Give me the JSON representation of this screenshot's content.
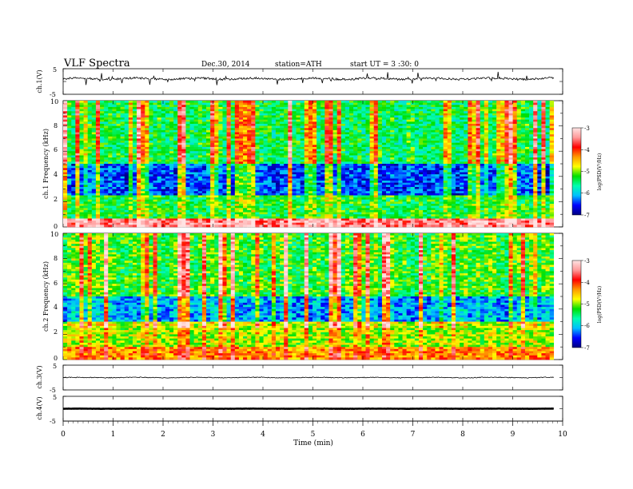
{
  "header": {
    "title": "VLF  Spectra",
    "date": "Dec.30, 2014",
    "station": "station=ATH",
    "start": "start  UT  =   3  :30: 0"
  },
  "colorbar": {
    "label": "log(PSD(V²/Hz)",
    "ticks": [
      "-3",
      "-4",
      "-5",
      "-6",
      "-7"
    ],
    "stops": [
      "#000080",
      "#0000ff",
      "#00bfff",
      "#00ffb0",
      "#00e000",
      "#ffff00",
      "#ff9900",
      "#ff0000",
      "#ff9a9a",
      "#ffe4e4"
    ]
  },
  "chart_data": [
    {
      "type": "line",
      "name": "ch1-waveform",
      "ylabel": "ch.1(V)",
      "ylim": [
        -5,
        5
      ],
      "yticks": [
        "5",
        "-5"
      ],
      "x_range_min": [
        0,
        9.82
      ],
      "baseline": 1.1,
      "noise_amplitude": 0.4,
      "color": "#000000"
    },
    {
      "type": "heatmap",
      "name": "ch1-spectrogram",
      "ylabel": "ch.1 Frequency (kHz)",
      "ylim": [
        0,
        10
      ],
      "yticks": [
        "0",
        "2",
        "4",
        "6",
        "8",
        "10"
      ],
      "x_range_min": [
        0,
        9.82
      ],
      "zlim": [
        -7,
        -3
      ],
      "z_label": "log(PSD(V²/Hz)",
      "bands": [
        {
          "from_khz": 0.0,
          "to_khz": 0.6,
          "mean_log_psd": -3.6
        },
        {
          "from_khz": 0.6,
          "to_khz": 2.5,
          "mean_log_psd": -5.4
        },
        {
          "from_khz": 2.5,
          "to_khz": 5.0,
          "mean_log_psd": -6.6
        },
        {
          "from_khz": 5.0,
          "to_khz": 10.0,
          "mean_log_psd": -5.6
        }
      ]
    },
    {
      "type": "heatmap",
      "name": "ch2-spectrogram",
      "ylabel": "ch.2 Frequency (kHz)",
      "ylim": [
        0,
        10
      ],
      "yticks": [
        "0",
        "2",
        "4",
        "6",
        "8",
        "10"
      ],
      "x_range_min": [
        0,
        9.82
      ],
      "zlim": [
        -7,
        -3
      ],
      "z_label": "log(PSD(V²/Hz)",
      "bands": [
        {
          "from_khz": 0.0,
          "to_khz": 1.0,
          "mean_log_psd": -4.4
        },
        {
          "from_khz": 1.0,
          "to_khz": 3.0,
          "mean_log_psd": -5.0
        },
        {
          "from_khz": 3.0,
          "to_khz": 5.0,
          "mean_log_psd": -6.3
        },
        {
          "from_khz": 5.0,
          "to_khz": 10.0,
          "mean_log_psd": -5.4
        }
      ]
    },
    {
      "type": "line",
      "name": "ch3-waveform",
      "ylabel": "ch.3(V)",
      "ylim": [
        -5,
        5
      ],
      "yticks": [
        "5",
        "-5"
      ],
      "x_range_min": [
        0,
        9.82
      ],
      "baseline": 0.0,
      "noise_amplitude": 0.15,
      "color": "#000000"
    },
    {
      "type": "line",
      "name": "ch4-waveform",
      "ylabel": "ch.4(V)",
      "ylim": [
        -5,
        5
      ],
      "yticks": [
        "5",
        "-5"
      ],
      "x_range_min": [
        0,
        9.82
      ],
      "baseline": 0.0,
      "noise_amplitude": 0.05,
      "color": "#000000"
    }
  ],
  "x_axis": {
    "label": "Time  (min)",
    "ticks": [
      "0",
      "1",
      "2",
      "3",
      "4",
      "5",
      "6",
      "7",
      "8",
      "9",
      "10"
    ],
    "xlim": [
      0,
      10
    ]
  }
}
